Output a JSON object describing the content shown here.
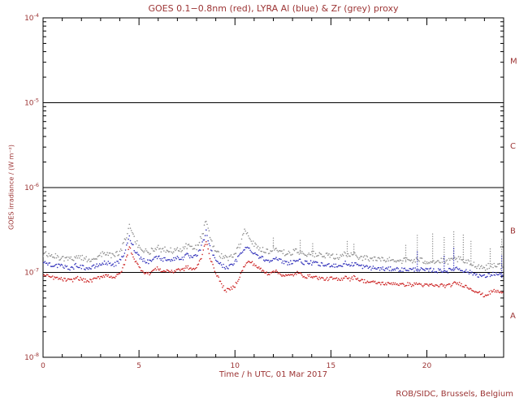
{
  "page": {
    "background": "#ffffff",
    "text_color": "#9c3434"
  },
  "footer": {
    "credit": "ROB/SIDC, Brussels, Belgium"
  },
  "chart_data": {
    "type": "scatter",
    "title": "GOES 0.1−0.8nm (red), LYRA Al (blue) & Zr (grey) proxy",
    "xlabel": "Time / h UTC, 01 Mar 2017",
    "ylabel": "GOES irradiance / (W m⁻²)",
    "x_range": [
      0,
      24
    ],
    "x_major_ticks": [
      0,
      5,
      10,
      15,
      20
    ],
    "x_minor_step": 1,
    "y_scale": "log",
    "y_range_exponents": [
      -8,
      -4
    ],
    "y_tick_exponents": [
      -4,
      -5,
      -6,
      -7,
      -8
    ],
    "hlines": [
      1e-05,
      1e-06,
      1e-07
    ],
    "flare_classes": [
      {
        "label": "M",
        "between_exponents": [
          -5,
          -4
        ]
      },
      {
        "label": "C",
        "between_exponents": [
          -6,
          -5
        ]
      },
      {
        "label": "B",
        "between_exponents": [
          -7,
          -6
        ]
      },
      {
        "label": "A",
        "between_exponents": [
          -8,
          -7
        ]
      }
    ],
    "time_start_h": 0,
    "time_step_h": 0.25,
    "value_unit": 1e-08,
    "series": [
      {
        "name": "LYRA Zr proxy (grey)",
        "color": "#8f8f8f",
        "scatter_dex": 0.07,
        "values": [
          16.5,
          16.1,
          15.6,
          15.2,
          14.9,
          14.5,
          14.3,
          15.6,
          14.9,
          14.3,
          14.4,
          15.1,
          16.0,
          16.7,
          16.2,
          15.8,
          17.2,
          23.0,
          35.0,
          25.0,
          20.0,
          18.0,
          17.1,
          18.8,
          19.8,
          18.2,
          18.8,
          17.9,
          19.5,
          18.8,
          20.5,
          19.4,
          19.9,
          26.0,
          40.0,
          23.0,
          18.3,
          15.9,
          14.8,
          15.1,
          16.7,
          21.0,
          33.0,
          26.0,
          21.5,
          19.8,
          18.4,
          17.6,
          19.5,
          18.0,
          17.1,
          16.7,
          17.1,
          18.0,
          17.1,
          16.4,
          16.7,
          16.1,
          15.8,
          15.5,
          15.8,
          15.5,
          15.2,
          16.6,
          15.5,
          16.4,
          15.2,
          14.9,
          14.6,
          14.4,
          14.2,
          14.1,
          14.0,
          14.2,
          14.0,
          13.7,
          14.0,
          13.7,
          14.1,
          13.7,
          13.5,
          13.7,
          13.3,
          13.6,
          13.3,
          13.6,
          14.5,
          14.0,
          13.3,
          12.8,
          12.3,
          11.8,
          11.4,
          11.9,
          12.4,
          12.0,
          11.8
        ]
      },
      {
        "name": "LYRA Al proxy (blue)",
        "color": "#3333bb",
        "scatter_dex": 0.05,
        "values": [
          13.0,
          12.7,
          12.3,
          12.0,
          11.7,
          11.4,
          11.2,
          12.2,
          11.7,
          11.2,
          11.3,
          11.8,
          12.5,
          13.0,
          12.7,
          12.4,
          13.5,
          17.0,
          26.0,
          19.0,
          15.5,
          14.0,
          13.3,
          14.6,
          15.3,
          14.1,
          14.6,
          13.9,
          15.1,
          14.6,
          15.9,
          15.0,
          15.4,
          20.0,
          30.0,
          18.0,
          14.3,
          12.4,
          11.5,
          11.8,
          13.0,
          16.0,
          19.5,
          19.0,
          17.0,
          15.5,
          14.4,
          13.7,
          14.9,
          14.0,
          13.3,
          13.0,
          13.3,
          14.0,
          13.3,
          12.8,
          13.0,
          12.6,
          12.3,
          12.1,
          12.3,
          12.1,
          11.9,
          12.9,
          12.1,
          12.8,
          11.9,
          11.6,
          11.4,
          11.2,
          11.1,
          11.0,
          10.9,
          11.1,
          10.9,
          10.7,
          10.9,
          10.7,
          11.0,
          10.7,
          10.5,
          10.7,
          10.4,
          10.6,
          10.4,
          10.6,
          11.3,
          10.9,
          10.4,
          10.0,
          9.6,
          9.2,
          8.9,
          9.3,
          9.7,
          9.4,
          9.2
        ]
      },
      {
        "name": "GOES 0.1-0.8nm (red)",
        "color": "#cc2222",
        "scatter_dex": 0.04,
        "values": [
          9.2,
          9.0,
          8.7,
          8.5,
          8.3,
          8.1,
          8.0,
          8.7,
          8.3,
          7.9,
          8.0,
          8.4,
          8.9,
          9.3,
          9.0,
          8.8,
          9.6,
          12.5,
          20.0,
          14.5,
          11.5,
          10.2,
          9.6,
          10.6,
          11.2,
          10.2,
          10.6,
          10.0,
          11.0,
          10.6,
          11.6,
          10.9,
          11.2,
          15.0,
          24.0,
          13.5,
          10.0,
          7.6,
          6.1,
          6.3,
          7.0,
          9.0,
          12.0,
          13.5,
          12.5,
          11.2,
          10.2,
          9.6,
          10.6,
          9.9,
          9.3,
          9.1,
          9.3,
          9.9,
          9.3,
          8.9,
          9.1,
          8.7,
          8.5,
          8.3,
          8.5,
          8.3,
          8.1,
          9.1,
          8.3,
          8.9,
          8.1,
          7.9,
          7.7,
          7.6,
          7.5,
          7.4,
          7.3,
          7.5,
          7.3,
          7.1,
          7.3,
          7.1,
          7.4,
          7.1,
          7.0,
          7.1,
          6.9,
          7.1,
          6.9,
          7.1,
          7.5,
          7.3,
          6.9,
          6.5,
          6.1,
          5.7,
          5.3,
          5.7,
          6.1,
          5.9,
          5.7
        ]
      }
    ],
    "spikes": [
      {
        "series_index": 0,
        "t": 12.0,
        "peak": 26
      },
      {
        "series_index": 0,
        "t": 13.4,
        "peak": 24
      },
      {
        "series_index": 0,
        "t": 14.05,
        "peak": 22
      },
      {
        "series_index": 0,
        "t": 15.85,
        "peak": 24
      },
      {
        "series_index": 0,
        "t": 16.2,
        "peak": 22
      },
      {
        "series_index": 0,
        "t": 18.9,
        "peak": 22
      },
      {
        "series_index": 0,
        "t": 19.5,
        "peak": 28
      },
      {
        "series_index": 0,
        "t": 20.3,
        "peak": 30
      },
      {
        "series_index": 0,
        "t": 20.9,
        "peak": 26
      },
      {
        "series_index": 0,
        "t": 21.4,
        "peak": 32
      },
      {
        "series_index": 0,
        "t": 21.9,
        "peak": 28
      },
      {
        "series_index": 0,
        "t": 22.3,
        "peak": 24
      },
      {
        "series_index": 0,
        "t": 23.3,
        "peak": 20
      },
      {
        "series_index": 0,
        "t": 23.9,
        "peak": 26
      },
      {
        "series_index": 1,
        "t": 19.5,
        "peak": 18
      },
      {
        "series_index": 1,
        "t": 20.9,
        "peak": 16
      },
      {
        "series_index": 1,
        "t": 21.4,
        "peak": 20
      },
      {
        "series_index": 1,
        "t": 23.9,
        "peak": 16
      }
    ]
  }
}
